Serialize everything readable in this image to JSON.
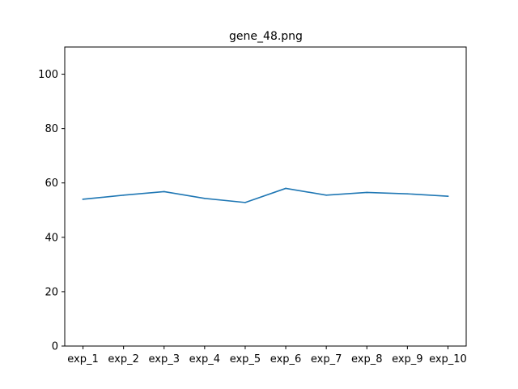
{
  "chart_data": {
    "type": "line",
    "title": "gene_48.png",
    "xlabel": "",
    "ylabel": "",
    "categories": [
      "exp_1",
      "exp_2",
      "exp_3",
      "exp_4",
      "exp_5",
      "exp_6",
      "exp_7",
      "exp_8",
      "exp_9",
      "exp_10"
    ],
    "series": [
      {
        "values": [
          54.0,
          55.5,
          56.8,
          54.3,
          52.8,
          58.0,
          55.5,
          56.5,
          56.0,
          55.1
        ],
        "color": "#1f77b4"
      }
    ],
    "ylim": [
      0,
      110
    ],
    "yticks": [
      0,
      20,
      40,
      60,
      80,
      100
    ],
    "grid": false,
    "legend": false
  }
}
